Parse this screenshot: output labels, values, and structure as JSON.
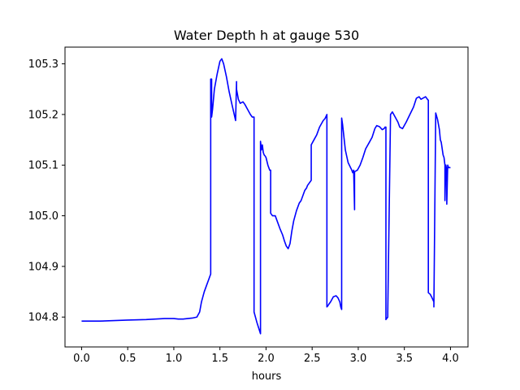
{
  "chart_data": {
    "type": "line",
    "title": "Water Depth h at gauge 530",
    "xlabel": "hours",
    "ylabel": "",
    "xlim": [
      -0.18,
      4.19
    ],
    "ylim": [
      104.741,
      105.333
    ],
    "xticks": [
      0.0,
      0.5,
      1.0,
      1.5,
      2.0,
      2.5,
      3.0,
      3.5,
      4.0
    ],
    "xtick_labels": [
      "0.0",
      "0.5",
      "1.0",
      "1.5",
      "2.0",
      "2.5",
      "3.0",
      "3.5",
      "4.0"
    ],
    "yticks": [
      104.8,
      104.9,
      105.0,
      105.1,
      105.2,
      105.3
    ],
    "ytick_labels": [
      "104.8",
      "104.9",
      "105.0",
      "105.1",
      "105.2",
      "105.3"
    ],
    "grid": false,
    "series": [
      {
        "color": "#0000ff",
        "x": [
          0.0,
          0.2,
          0.5,
          0.7,
          0.9,
          1.0,
          1.05,
          1.1,
          1.2,
          1.25,
          1.28,
          1.3,
          1.33,
          1.37,
          1.4,
          1.4,
          1.41,
          1.41,
          1.42,
          1.44,
          1.47,
          1.5,
          1.52,
          1.54,
          1.57,
          1.6,
          1.63,
          1.67,
          1.68,
          1.68,
          1.7,
          1.72,
          1.75,
          1.77,
          1.8,
          1.83,
          1.85,
          1.87,
          1.87,
          1.9,
          1.94,
          1.94,
          1.95,
          1.96,
          1.97,
          1.98,
          1.99,
          2.0,
          2.02,
          2.04,
          2.05,
          2.05,
          2.07,
          2.1,
          2.12,
          2.15,
          2.18,
          2.2,
          2.22,
          2.24,
          2.26,
          2.28,
          2.3,
          2.33,
          2.36,
          2.38,
          2.4,
          2.42,
          2.44,
          2.45,
          2.47,
          2.49,
          2.49,
          2.52,
          2.55,
          2.58,
          2.62,
          2.64,
          2.66,
          2.66,
          2.67,
          2.68,
          2.7,
          2.73,
          2.76,
          2.78,
          2.8,
          2.81,
          2.82,
          2.82,
          2.83,
          2.86,
          2.89,
          2.93,
          2.94,
          2.95,
          2.96,
          2.96,
          2.99,
          3.02,
          3.05,
          3.08,
          3.12,
          3.15,
          3.18,
          3.2,
          3.23,
          3.26,
          3.28,
          3.29,
          3.3,
          3.3,
          3.32,
          3.32,
          3.35,
          3.37,
          3.4,
          3.43,
          3.45,
          3.48,
          3.52,
          3.56,
          3.6,
          3.63,
          3.66,
          3.68,
          3.7,
          3.73,
          3.75,
          3.76,
          3.76,
          3.78,
          3.8,
          3.82,
          3.82,
          3.84,
          3.86,
          3.88,
          3.89,
          3.9,
          3.92,
          3.93,
          3.94,
          3.94,
          3.95,
          3.96,
          3.96,
          3.97,
          3.98,
          4.0
        ],
        "y": [
          104.792,
          104.792,
          104.794,
          104.795,
          104.797,
          104.797,
          104.796,
          104.796,
          104.798,
          104.8,
          104.81,
          104.83,
          104.85,
          104.87,
          104.885,
          105.27,
          105.27,
          105.195,
          105.21,
          105.25,
          105.28,
          105.305,
          105.31,
          105.3,
          105.275,
          105.245,
          105.22,
          105.188,
          105.265,
          105.25,
          105.23,
          105.222,
          105.225,
          105.22,
          105.21,
          105.2,
          105.195,
          105.195,
          104.81,
          104.79,
          104.767,
          105.147,
          105.13,
          105.14,
          105.125,
          105.12,
          105.118,
          105.115,
          105.1,
          105.09,
          105.09,
          105.005,
          105.0,
          105.0,
          104.99,
          104.975,
          104.962,
          104.95,
          104.94,
          104.935,
          104.945,
          104.97,
          104.99,
          105.01,
          105.025,
          105.03,
          105.04,
          105.05,
          105.055,
          105.06,
          105.065,
          105.07,
          105.14,
          105.15,
          105.16,
          105.175,
          105.188,
          105.192,
          105.2,
          104.82,
          104.822,
          104.825,
          104.83,
          104.84,
          104.842,
          104.838,
          104.83,
          104.82,
          104.815,
          105.193,
          105.18,
          105.13,
          105.105,
          105.09,
          105.085,
          105.09,
          105.012,
          105.087,
          105.09,
          105.1,
          105.115,
          105.132,
          105.145,
          105.155,
          105.172,
          105.178,
          105.176,
          105.17,
          105.172,
          105.175,
          105.175,
          104.795,
          104.8,
          104.81,
          105.2,
          105.205,
          105.195,
          105.185,
          105.175,
          105.172,
          105.185,
          105.2,
          105.215,
          105.232,
          105.235,
          105.23,
          105.232,
          105.235,
          105.23,
          105.228,
          104.848,
          104.845,
          104.838,
          104.83,
          104.82,
          105.203,
          105.19,
          105.17,
          105.15,
          105.145,
          105.12,
          105.115,
          105.1,
          105.03,
          105.1,
          105.09,
          105.023,
          105.1,
          105.095,
          105.095
        ]
      }
    ]
  }
}
